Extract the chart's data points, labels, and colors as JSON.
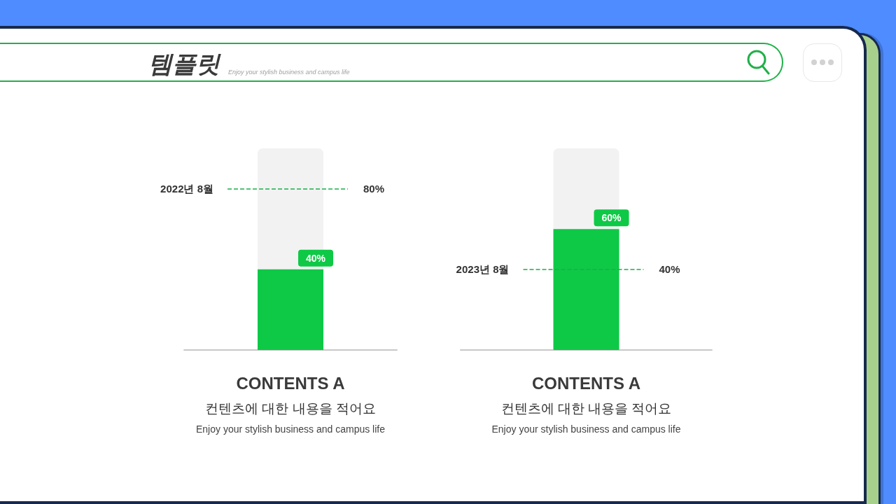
{
  "chart_data": [
    {
      "type": "bar",
      "title": "템플릿",
      "subtitle": "Enjoy your stylish business and campus life",
      "categories": [
        "CONTENTS A"
      ],
      "values": [
        40
      ],
      "value_labels": [
        "40%"
      ],
      "color": "#0ec946",
      "ylim": [
        0,
        100
      ],
      "tick_labels": "x",
      "xlabel": "컨텐츠에 대한 내용을 적어요",
      "ref_lines": [
        {
          "axis": "y",
          "value": 80,
          "label": "80%",
          "color": "#1aae4a",
          "line_style": "dashed"
        }
      ],
      "annotations": [
        "2022년 8월",
        "Enjoy your stylish business and campus life"
      ]
    },
    {
      "type": "bar",
      "categories": [
        "CONTENTS A"
      ],
      "values": [
        60
      ],
      "value_labels": [
        "60%"
      ],
      "color": "#0ec946",
      "ylim": [
        0,
        100
      ],
      "tick_labels": "x",
      "xlabel": "컨텐츠에 대한 내용을 적어요",
      "ref_lines": [
        {
          "axis": "y",
          "value": 40,
          "label": "40%",
          "color": "#1aae4a",
          "line_style": "dashed"
        }
      ],
      "annotations": [
        "2023년 8월",
        "Enjoy your stylish business and campus life"
      ]
    }
  ]
}
